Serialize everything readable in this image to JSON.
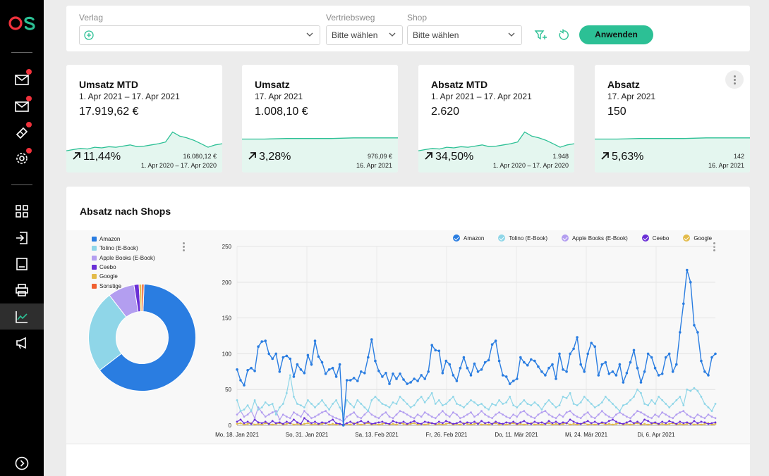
{
  "app": {
    "logo_text": "OS",
    "logo_colors": [
      "#f0323c",
      "#2cc095"
    ]
  },
  "sidebar": {
    "items": [
      {
        "icon": "mail-icon",
        "badge": true
      },
      {
        "icon": "mail-icon",
        "badge": true
      },
      {
        "icon": "ticket-icon",
        "badge": true
      },
      {
        "icon": "gear-icon",
        "badge": true
      },
      {
        "icon": "grid-icon",
        "badge": false
      },
      {
        "icon": "login-icon",
        "badge": false
      },
      {
        "icon": "document-icon",
        "badge": false
      },
      {
        "icon": "printer-icon",
        "badge": false
      },
      {
        "icon": "analytics-icon",
        "badge": false,
        "active": true
      },
      {
        "icon": "megaphone-icon",
        "badge": false
      }
    ],
    "bottom_icon": "expand-icon"
  },
  "filters": {
    "verlag_label": "Verlag",
    "vertriebsweg_label": "Vertriebsweg",
    "vertriebsweg_placeholder": "Bitte wählen",
    "shop_label": "Shop",
    "shop_placeholder": "Bitte wählen",
    "apply_label": "Anwenden"
  },
  "kpis": [
    {
      "title": "Umsatz MTD",
      "period": "1. Apr 2021 – 17. Apr 2021",
      "value": "17.919,62 €",
      "trend": "11,44%",
      "compare_value": "16.080,12 €",
      "compare_period": "1. Apr 2020 – 17. Apr 2020",
      "sparkline": [
        0.3,
        0.32,
        0.34,
        0.33,
        0.36,
        0.35,
        0.37,
        0.36,
        0.38,
        0.4,
        0.37,
        0.38,
        0.4,
        0.42,
        0.45,
        0.62,
        0.55,
        0.52,
        0.48,
        0.42,
        0.36,
        0.4,
        0.42
      ]
    },
    {
      "title": "Umsatz",
      "period": "17. Apr 2021",
      "value": "1.008,10 €",
      "trend": "3,28%",
      "compare_value": "976,09 €",
      "compare_period": "16. Apr 2021",
      "sparkline": [
        0.5,
        0.5,
        0.51,
        0.51,
        0.51,
        0.52,
        0.52,
        0.52
      ]
    },
    {
      "title": "Absatz MTD",
      "period": "1. Apr 2021 – 17. Apr 2021",
      "value": "2.620",
      "trend": "34,50%",
      "compare_value": "1.948",
      "compare_period": "1. Apr 2020 – 17. Apr 2020",
      "sparkline": [
        0.3,
        0.32,
        0.34,
        0.33,
        0.36,
        0.35,
        0.37,
        0.36,
        0.38,
        0.4,
        0.37,
        0.38,
        0.4,
        0.42,
        0.45,
        0.62,
        0.55,
        0.52,
        0.48,
        0.42,
        0.36,
        0.4,
        0.42
      ]
    },
    {
      "title": "Absatz",
      "period": "17. Apr 2021",
      "value": "150",
      "trend": "5,63%",
      "compare_value": "142",
      "compare_period": "16. Apr 2021",
      "sparkline": [
        0.5,
        0.5,
        0.51,
        0.51,
        0.51,
        0.52,
        0.52,
        0.52
      ]
    }
  ],
  "panel": {
    "title": "Absatz nach Shops"
  },
  "colors": {
    "accent": "#2cc095",
    "amazon": "#2a7de1",
    "tolino": "#8fd6e8",
    "apple": "#b39ef0",
    "ceebo": "#6a2fd6",
    "google": "#e3bb4a",
    "sonstige": "#f06030"
  },
  "chart_data": [
    {
      "type": "pie",
      "labels": [
        "Amazon",
        "Tolino (E-Book)",
        "Apple Books (E-Book)",
        "Ceebo",
        "Google",
        "Sonstige"
      ],
      "values": [
        64,
        25,
        8,
        1.5,
        0.8,
        0.7
      ],
      "legend": "top-left"
    },
    {
      "type": "line",
      "x_tick_labels": [
        "Mo, 18. Jan 2021",
        "So, 31. Jan 2021",
        "Sa, 13. Feb 2021",
        "Fr, 26. Feb 2021",
        "Do, 11. Mär 2021",
        "Mi, 24. Mär 2021",
        "Di, 6. Apr 2021"
      ],
      "y_ticks": [
        0,
        50,
        100,
        150,
        200,
        250
      ],
      "ylim": [
        0,
        250
      ],
      "grid": true,
      "legend": "top",
      "series": [
        {
          "name": "Amazon",
          "values": [
            78,
            63,
            56,
            77,
            80,
            76,
            110,
            117,
            118,
            100,
            93,
            100,
            75,
            95,
            97,
            93,
            68,
            85,
            78,
            73,
            98,
            85,
            118,
            96,
            88,
            72,
            78,
            80,
            68,
            85,
            0,
            63,
            63,
            66,
            62,
            75,
            73,
            95,
            120,
            90,
            76,
            68,
            73,
            58,
            72,
            65,
            72,
            64,
            58,
            60,
            65,
            62,
            70,
            65,
            75,
            112,
            105,
            104,
            73,
            90,
            85,
            70,
            62,
            80,
            95,
            80,
            70,
            86,
            75,
            78,
            88,
            91,
            113,
            118,
            90,
            70,
            68,
            58,
            62,
            65,
            95,
            88,
            84,
            92,
            90,
            82,
            75,
            70,
            80,
            85,
            65,
            100,
            78,
            75,
            100,
            107,
            123,
            85,
            75,
            100,
            115,
            110,
            70,
            85,
            88,
            72,
            75,
            70,
            85,
            60,
            73,
            88,
            105,
            80,
            60,
            75,
            100,
            95,
            80,
            70,
            72,
            95,
            100,
            75,
            85,
            130,
            170,
            217,
            200,
            140,
            130,
            90,
            75,
            70,
            95,
            100
          ]
        },
        {
          "name": "Tolino (E-Book)",
          "values": [
            35,
            20,
            22,
            28,
            20,
            35,
            22,
            25,
            32,
            28,
            30,
            15,
            25,
            30,
            45,
            70,
            40,
            30,
            28,
            25,
            35,
            30,
            25,
            30,
            35,
            28,
            22,
            30,
            35,
            25,
            15,
            35,
            30,
            25,
            35,
            30,
            25,
            20,
            35,
            40,
            35,
            30,
            28,
            25,
            32,
            30,
            40,
            35,
            30,
            25,
            28,
            35,
            40,
            32,
            38,
            45,
            30,
            35,
            28,
            30,
            35,
            40,
            30,
            28,
            25,
            30,
            35,
            32,
            28,
            30,
            25,
            22,
            30,
            28,
            35,
            30,
            32,
            40,
            28,
            25,
            30,
            35,
            30,
            28,
            32,
            28,
            22,
            30,
            35,
            30,
            25,
            28,
            40,
            38,
            45,
            30,
            28,
            32,
            40,
            35,
            30,
            25,
            28,
            32,
            40,
            35,
            30,
            25,
            20,
            28,
            30,
            35,
            40,
            50,
            45,
            30,
            28,
            35,
            30,
            40,
            35,
            30,
            25,
            30,
            35,
            40,
            28,
            50,
            48,
            52,
            48,
            40,
            30,
            25,
            20,
            30
          ]
        },
        {
          "name": "Apple Books (E-Book)",
          "values": [
            15,
            20,
            12,
            15,
            20,
            10,
            25,
            18,
            12,
            15,
            18,
            20,
            8,
            15,
            12,
            10,
            18,
            15,
            12,
            20,
            15,
            10,
            12,
            15,
            18,
            20,
            15,
            12,
            10,
            8,
            5,
            12,
            15,
            18,
            12,
            10,
            15,
            20,
            15,
            12,
            10,
            15,
            18,
            12,
            10,
            15,
            20,
            18,
            15,
            12,
            10,
            15,
            12,
            18,
            15,
            12,
            10,
            15,
            20,
            15,
            12,
            18,
            15,
            10,
            12,
            15,
            18,
            12,
            15,
            20,
            15,
            12,
            10,
            15,
            18,
            15,
            12,
            10,
            15,
            12,
            18,
            20,
            15,
            12,
            10,
            15,
            18,
            20,
            15,
            12,
            10,
            15,
            12,
            18,
            20,
            15,
            12,
            10,
            15,
            18,
            12,
            10,
            15,
            20,
            15,
            12,
            10,
            15,
            18,
            15,
            12,
            10,
            15,
            20,
            18,
            15,
            12,
            10,
            15,
            12,
            18,
            15,
            12,
            10,
            15,
            18,
            20,
            15,
            12,
            10,
            15,
            12,
            10,
            15,
            12,
            10
          ]
        },
        {
          "name": "Ceebo",
          "values": [
            5,
            8,
            3,
            5,
            2,
            8,
            4,
            3,
            5,
            2,
            6,
            3,
            4,
            2,
            5,
            3,
            8,
            4,
            2,
            10,
            6,
            3,
            5,
            2,
            4,
            3,
            5,
            8,
            3,
            2,
            1,
            3,
            5,
            2,
            4,
            6,
            3,
            5,
            2,
            3,
            4,
            5,
            3,
            2,
            6,
            4,
            3,
            5,
            2,
            4,
            6,
            3,
            2,
            5,
            4,
            3,
            2,
            5,
            3,
            6,
            4,
            2,
            3,
            5,
            2,
            4,
            3,
            5,
            2,
            6,
            3,
            4,
            2,
            5,
            3,
            2,
            4,
            3,
            5,
            2,
            4,
            6,
            3,
            2,
            5,
            3,
            4,
            2,
            6,
            3,
            5,
            2,
            4,
            3,
            8,
            5,
            3,
            2,
            4,
            6,
            3,
            5,
            2,
            4,
            3,
            6,
            8,
            5,
            3,
            2,
            4,
            6,
            3,
            5,
            2,
            8,
            6,
            3,
            4,
            2,
            5,
            3,
            6,
            4,
            2,
            5,
            3,
            4,
            2,
            6,
            3,
            5,
            4,
            2,
            3,
            4
          ]
        },
        {
          "name": "Google",
          "values": [
            2,
            3,
            1,
            2,
            3,
            1,
            2,
            1,
            3,
            2,
            1,
            2,
            3,
            1,
            2,
            3,
            1,
            2,
            1,
            2,
            3,
            1,
            2,
            1,
            2,
            3,
            1,
            2,
            1,
            2,
            0,
            2,
            1,
            3,
            2,
            1,
            2,
            3,
            1,
            2,
            1,
            2,
            3,
            1,
            2,
            1,
            3,
            2,
            1,
            2,
            3,
            1,
            2,
            1,
            2,
            3,
            1,
            2,
            1,
            2,
            3,
            1,
            2,
            1,
            3,
            2,
            1,
            2,
            3,
            1,
            2,
            1,
            2,
            3,
            1,
            2,
            1,
            2,
            3,
            1,
            2,
            1,
            2,
            3,
            1,
            2,
            1,
            2,
            3,
            1,
            2,
            1,
            2,
            3,
            1,
            2,
            1,
            2,
            3,
            1,
            2,
            1,
            2,
            3,
            1,
            2,
            1,
            2,
            3,
            1,
            2,
            1,
            2,
            3,
            1,
            2,
            1,
            2,
            3,
            1,
            2,
            1,
            2,
            3,
            1,
            2,
            1,
            2,
            3,
            1,
            2,
            1,
            2,
            3,
            1,
            2
          ]
        }
      ]
    }
  ]
}
